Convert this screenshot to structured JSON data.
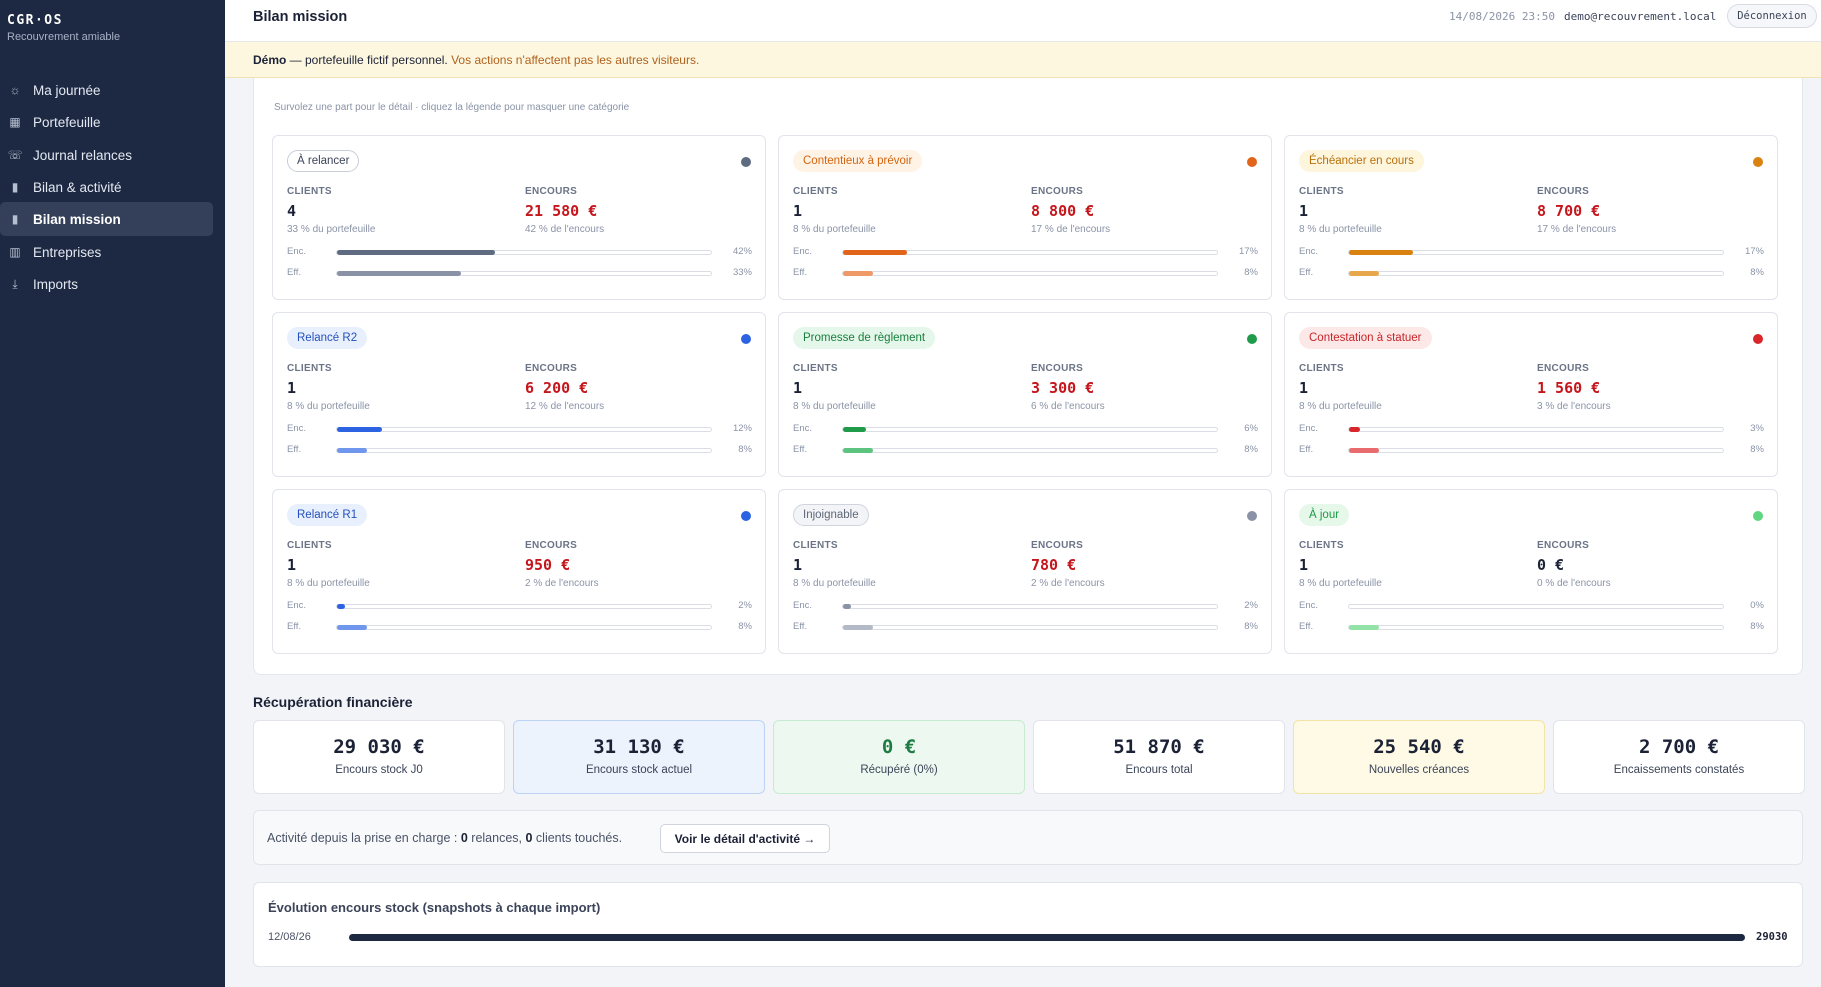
{
  "app": {
    "name": "CGR·OS",
    "subtitle": "Recouvrement amiable"
  },
  "nav": [
    {
      "label": "Ma journée",
      "icon": "sun-icon",
      "active": false
    },
    {
      "label": "Portefeuille",
      "icon": "grid-icon",
      "active": false
    },
    {
      "label": "Journal relances",
      "icon": "phone-icon",
      "active": false
    },
    {
      "label": "Bilan & activité",
      "icon": "bar-chart-icon",
      "active": false
    },
    {
      "label": "Bilan mission",
      "icon": "bar-chart-icon",
      "active": true
    },
    {
      "label": "Entreprises",
      "icon": "building-icon",
      "active": false
    },
    {
      "label": "Imports",
      "icon": "download-icon",
      "active": false
    }
  ],
  "header": {
    "title": "Bilan mission",
    "datetime": "14/08/2026 23:50",
    "user": "demo@recouvrement.local",
    "logout": "Déconnexion"
  },
  "banner": {
    "strong": "Démo",
    "text": " — portefeuille fictif personnel. ",
    "warning": "Vos actions n'affectent pas les autres visiteurs."
  },
  "categories_hint": "Survolez une part pour le détail · cliquez la légende pour masquer une catégorie",
  "labels": {
    "clients": "CLIENTS",
    "encours": "ENCOURS",
    "enc": "Enc.",
    "eff": "Eff."
  },
  "categories": [
    {
      "name": "À relancer",
      "color": "#5f6b80",
      "pill_bg": "#ffffff",
      "pill_fg": "#3b4458",
      "pill_border": "#c8cdd7",
      "clients": "4",
      "clients_sub": "33 % du portefeuille",
      "encours": "21 580 €",
      "encours_sub": "42 % de l'encours",
      "enc_pct": 42,
      "eff_pct": 33,
      "enc_label": "42%",
      "eff_label": "33%",
      "eff_color": "#8a93a6"
    },
    {
      "name": "Contentieux à prévoir",
      "color": "#e0641a",
      "pill_bg": "#fff3e6",
      "pill_fg": "#d3640f",
      "pill_border": "#fff3e6",
      "clients": "1",
      "clients_sub": "8 % du portefeuille",
      "encours": "8 800 €",
      "encours_sub": "17 % de l'encours",
      "enc_pct": 17,
      "eff_pct": 8,
      "enc_label": "17%",
      "eff_label": "8%",
      "eff_color": "#ef9868"
    },
    {
      "name": "Échéancier en cours",
      "color": "#d9820f",
      "pill_bg": "#fdf5dc",
      "pill_fg": "#b9700c",
      "pill_border": "#fdf5dc",
      "clients": "1",
      "clients_sub": "8 % du portefeuille",
      "encours": "8 700 €",
      "encours_sub": "17 % de l'encours",
      "enc_pct": 17,
      "eff_pct": 8,
      "enc_label": "17%",
      "eff_label": "8%",
      "eff_color": "#e6a84a"
    },
    {
      "name": "Relancé R2",
      "color": "#2b63e3",
      "pill_bg": "#e8f0fd",
      "pill_fg": "#2450bd",
      "pill_border": "#e8f0fd",
      "clients": "1",
      "clients_sub": "8 % du portefeuille",
      "encours": "6 200 €",
      "encours_sub": "12 % de l'encours",
      "enc_pct": 12,
      "eff_pct": 8,
      "enc_label": "12%",
      "eff_label": "8%",
      "eff_color": "#6f97ee"
    },
    {
      "name": "Promesse de règlement",
      "color": "#1f9b4a",
      "pill_bg": "#e4f7ea",
      "pill_fg": "#17803c",
      "pill_border": "#e4f7ea",
      "clients": "1",
      "clients_sub": "8 % du portefeuille",
      "encours": "3 300 €",
      "encours_sub": "6 % de l'encours",
      "enc_pct": 6,
      "eff_pct": 8,
      "enc_label": "6%",
      "eff_label": "8%",
      "eff_color": "#5cc47f"
    },
    {
      "name": "Contestation à statuer",
      "color": "#d9262b",
      "pill_bg": "#fde8e8",
      "pill_fg": "#c6252a",
      "pill_border": "#fde8e8",
      "clients": "1",
      "clients_sub": "8 % du portefeuille",
      "encours": "1 560 €",
      "encours_sub": "3 % de l'encours",
      "enc_pct": 3,
      "eff_pct": 8,
      "enc_label": "3%",
      "eff_label": "8%",
      "eff_color": "#e86b6e"
    },
    {
      "name": "Relancé R1",
      "color": "#2b63e3",
      "pill_bg": "#e8f0fd",
      "pill_fg": "#2450bd",
      "pill_border": "#e8f0fd",
      "clients": "1",
      "clients_sub": "8 % du portefeuille",
      "encours": "950 €",
      "encours_sub": "2 % de l'encours",
      "enc_pct": 2,
      "eff_pct": 8,
      "enc_label": "2%",
      "eff_label": "8%",
      "eff_color": "#6f97ee"
    },
    {
      "name": "Injoignable",
      "color": "#8a93a6",
      "pill_bg": "#f3f4f7",
      "pill_fg": "#5f6878",
      "pill_border": "#d0d4dc",
      "clients": "1",
      "clients_sub": "8 % du portefeuille",
      "encours": "780 €",
      "encours_sub": "2 % de l'encours",
      "enc_pct": 2,
      "eff_pct": 8,
      "enc_label": "2%",
      "eff_label": "8%",
      "eff_color": "#b3b9c6"
    },
    {
      "name": "À jour",
      "color": "#5fd67f",
      "pill_bg": "#e6f8ea",
      "pill_fg": "#1e9a45",
      "pill_border": "#e6f8ea",
      "clients": "1",
      "clients_sub": "8 % du portefeuille",
      "encours": "0 €",
      "encours_sub": "0 % de l'encours",
      "enc_pct": 0,
      "eff_pct": 8,
      "enc_label": "0%",
      "eff_label": "8%",
      "eff_color": "#93e3a8",
      "encours_color": "#1b2236"
    }
  ],
  "recuperation": {
    "title": "Récupération financière",
    "kpis": [
      {
        "value": "29 030 €",
        "label": "Encours stock J0",
        "bg": "#ffffff",
        "border": "#e1e4eb",
        "color": "#1b2236"
      },
      {
        "value": "31 130 €",
        "label": "Encours stock actuel",
        "bg": "#ecf3fd",
        "border": "#bcd3f5",
        "color": "#1b2236"
      },
      {
        "value": "0 €",
        "label": "Récupéré (0%)",
        "bg": "#edf9f0",
        "border": "#c6ebd1",
        "color": "#1f7d43"
      },
      {
        "value": "51 870 €",
        "label": "Encours total",
        "bg": "#ffffff",
        "border": "#e1e4eb",
        "color": "#1b2236"
      },
      {
        "value": "25 540 €",
        "label": "Nouvelles créances",
        "bg": "#fefae6",
        "border": "#f3e3a4",
        "color": "#1b2236"
      },
      {
        "value": "2 700 €",
        "label": "Encaissements constatés",
        "bg": "#ffffff",
        "border": "#e1e4eb",
        "color": "#1b2236"
      }
    ]
  },
  "activity": {
    "prefix": "Activité depuis la prise en charge : ",
    "relances": "0",
    "mid": " relances, ",
    "clients": "0",
    "suffix": " clients touchés.",
    "button": "Voir le détail d'activité →"
  },
  "evolution": {
    "title": "Évolution encours stock (snapshots à chaque import)",
    "rows": [
      {
        "date": "12/08/26",
        "value": 29030,
        "value_label": "29030",
        "fraction": 1.0
      }
    ]
  }
}
